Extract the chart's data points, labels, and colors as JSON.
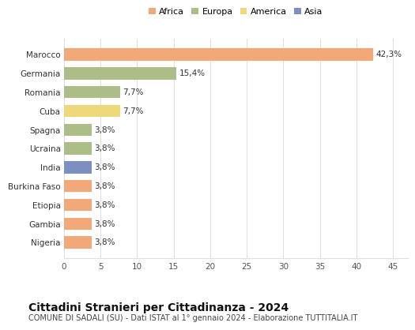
{
  "categories": [
    "Nigeria",
    "Gambia",
    "Etiopia",
    "Burkina Faso",
    "India",
    "Ucraina",
    "Spagna",
    "Cuba",
    "Romania",
    "Germania",
    "Marocco"
  ],
  "values": [
    3.8,
    3.8,
    3.8,
    3.8,
    3.8,
    3.8,
    3.8,
    7.7,
    7.7,
    15.4,
    42.3
  ],
  "colors": [
    "#F2A878",
    "#F2A878",
    "#F2A878",
    "#F2A878",
    "#7B8FC0",
    "#ABBE88",
    "#ABBE88",
    "#EDD87A",
    "#ABBE88",
    "#ABBE88",
    "#F2A878"
  ],
  "labels": [
    "3,8%",
    "3,8%",
    "3,8%",
    "3,8%",
    "3,8%",
    "3,8%",
    "3,8%",
    "7,7%",
    "7,7%",
    "15,4%",
    "42,3%"
  ],
  "xlim": [
    0,
    47
  ],
  "xticks": [
    0,
    5,
    10,
    15,
    20,
    25,
    30,
    35,
    40,
    45
  ],
  "legend_items": [
    {
      "label": "Africa",
      "color": "#F2A878"
    },
    {
      "label": "Europa",
      "color": "#ABBE88"
    },
    {
      "label": "America",
      "color": "#EDD87A"
    },
    {
      "label": "Asia",
      "color": "#7B8FC0"
    }
  ],
  "title": "Cittadini Stranieri per Cittadinanza - 2024",
  "subtitle": "COMUNE DI SADALI (SU) - Dati ISTAT al 1° gennaio 2024 - Elaborazione TUTTITALIA.IT",
  "background_color": "#ffffff",
  "grid_color": "#e0e0e0",
  "bar_height": 0.65,
  "label_fontsize": 7.5,
  "ytick_fontsize": 7.5,
  "xtick_fontsize": 7.5,
  "title_fontsize": 10,
  "subtitle_fontsize": 7,
  "legend_fontsize": 8
}
